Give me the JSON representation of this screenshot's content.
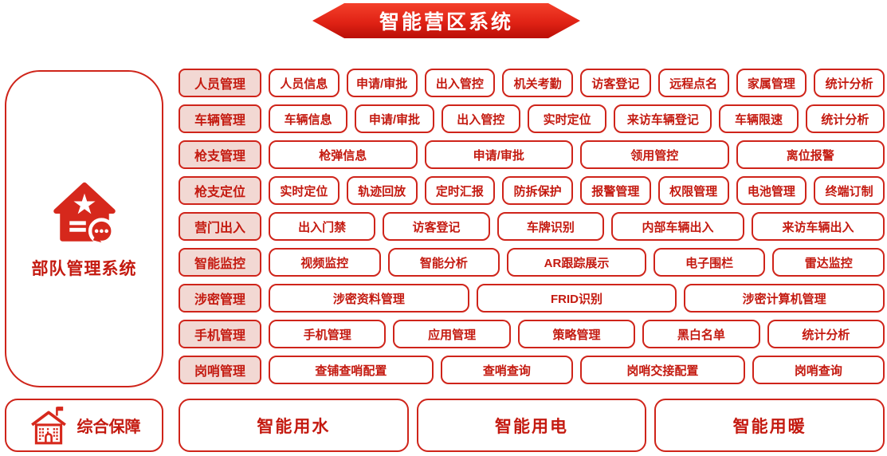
{
  "banner": {
    "title": "智能营区系统"
  },
  "left_panel": {
    "title": "部队管理系统",
    "icon": "house-star-chat-icon"
  },
  "rows": [
    {
      "label": "人员管理",
      "items": [
        "人员信息",
        "申请/审批",
        "出入管控",
        "机关考勤",
        "访客登记",
        "远程点名",
        "家属管理",
        "统计分析"
      ]
    },
    {
      "label": "车辆管理",
      "items": [
        "车辆信息",
        "申请/审批",
        "出入管控",
        "实时定位",
        "来访车辆登记",
        "车辆限速",
        "统计分析"
      ]
    },
    {
      "label": "枪支管理",
      "items": [
        "枪弹信息",
        "申请/审批",
        "领用管控",
        "离位报警"
      ]
    },
    {
      "label": "枪支定位",
      "items": [
        "实时定位",
        "轨迹回放",
        "定时汇报",
        "防拆保护",
        "报警管理",
        "权限管理",
        "电池管理",
        "终端订制"
      ]
    },
    {
      "label": "营门出入",
      "items": [
        "出入门禁",
        "访客登记",
        "车牌识别",
        "内部车辆出入",
        "来访车辆出入"
      ]
    },
    {
      "label": "智能监控",
      "items": [
        "视频监控",
        "智能分析",
        "AR跟踪展示",
        "电子围栏",
        "雷达监控"
      ]
    },
    {
      "label": "涉密管理",
      "items": [
        "涉密资料管理",
        "FRID识别",
        "涉密计算机管理"
      ]
    },
    {
      "label": "手机管理",
      "items": [
        "手机管理",
        "应用管理",
        "策略管理",
        "黑白名单",
        "统计分析"
      ]
    },
    {
      "label": "岗哨管理",
      "items": [
        "查铺查哨配置",
        "查哨查询",
        "岗哨交接配置",
        "岗哨查询"
      ]
    }
  ],
  "bottom": {
    "label": "综合保障",
    "icon": "building-flag-icon",
    "items": [
      "智能用水",
      "智能用电",
      "智能用暖"
    ]
  },
  "colors": {
    "accent_red": "#cf241a",
    "text_red": "#c41a10",
    "label_fill": "#f2d8d3",
    "banner_gradient_top": "#f4402a",
    "banner_gradient_bottom": "#ba0f07",
    "background": "#ffffff"
  }
}
